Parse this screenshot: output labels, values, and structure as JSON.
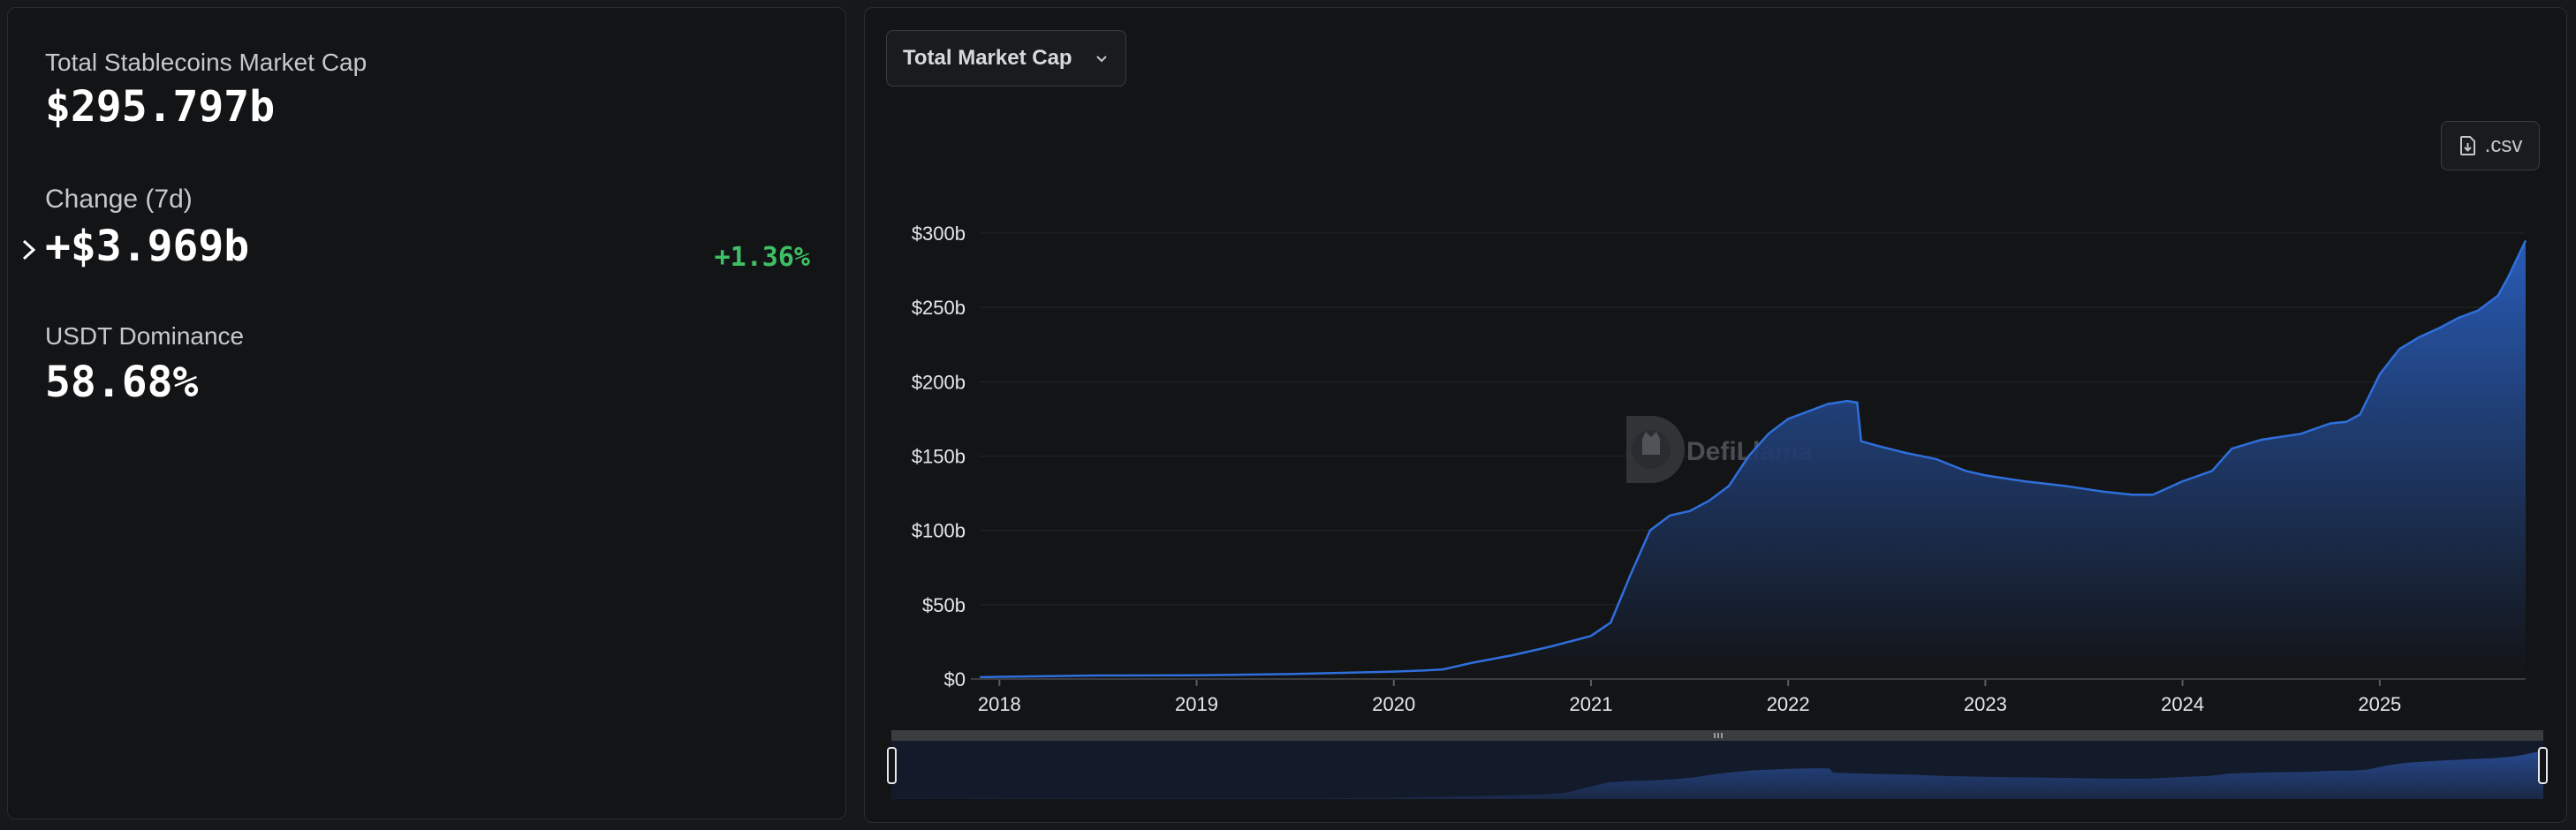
{
  "stats": {
    "market_cap_label": "Total Stablecoins Market Cap",
    "market_cap_value": "$295.797b",
    "change_label": "Change (7d)",
    "change_value": "+$3.969b",
    "change_pct": "+1.36%",
    "dominance_label": "USDT Dominance",
    "dominance_value": "58.68%"
  },
  "controls": {
    "dropdown_label": "Total Market Cap",
    "csv_label": ".csv"
  },
  "watermark": "DefiLlama",
  "colors": {
    "line": "#2f6fdc",
    "positive": "#3ebf64",
    "background": "#131416"
  },
  "chart_data": {
    "type": "area",
    "title": "",
    "xlabel": "",
    "ylabel": "",
    "x_ticks": [
      "2018",
      "2019",
      "2020",
      "2021",
      "2022",
      "2023",
      "2024",
      "2025"
    ],
    "y_ticks": [
      "$0",
      "$50b",
      "$100b",
      "$150b",
      "$200b",
      "$250b",
      "$300b"
    ],
    "ylim": [
      0,
      300
    ],
    "xlim": [
      2017.9,
      2025.74
    ],
    "grid": true,
    "series": [
      {
        "x": [
          2017.9,
          2018.0,
          2018.5,
          2019.0,
          2019.5,
          2020.0,
          2020.15,
          2020.25,
          2020.4,
          2020.6,
          2020.8,
          2021.0,
          2021.1,
          2021.2,
          2021.3,
          2021.4,
          2021.5,
          2021.6,
          2021.7,
          2021.8,
          2021.9,
          2022.0,
          2022.1,
          2022.2,
          2022.3,
          2022.35,
          2022.37,
          2022.45,
          2022.6,
          2022.75,
          2022.9,
          2023.0,
          2023.2,
          2023.4,
          2023.6,
          2023.75,
          2023.85,
          2024.0,
          2024.15,
          2024.25,
          2024.4,
          2024.6,
          2024.75,
          2024.83,
          2024.9,
          2025.0,
          2025.1,
          2025.2,
          2025.3,
          2025.4,
          2025.5,
          2025.6,
          2025.65,
          2025.74
        ],
        "values": [
          1.2,
          1.5,
          2.4,
          2.5,
          3.4,
          5.0,
          5.7,
          6.5,
          11.0,
          16.0,
          22.0,
          29.0,
          38.0,
          70.0,
          100.0,
          110.0,
          113.0,
          120.0,
          130.0,
          150.0,
          165.0,
          175.0,
          180.0,
          185.0,
          187.0,
          186.0,
          160.0,
          157.0,
          152.0,
          148.0,
          140.0,
          137.0,
          133.0,
          130.0,
          126.0,
          124.0,
          124.0,
          133.0,
          140.0,
          155.0,
          161.0,
          165.0,
          172.0,
          173.0,
          178.0,
          205.0,
          222.0,
          230.0,
          236.0,
          243.0,
          248.0,
          258.0,
          270.0,
          295.0
        ]
      }
    ]
  }
}
